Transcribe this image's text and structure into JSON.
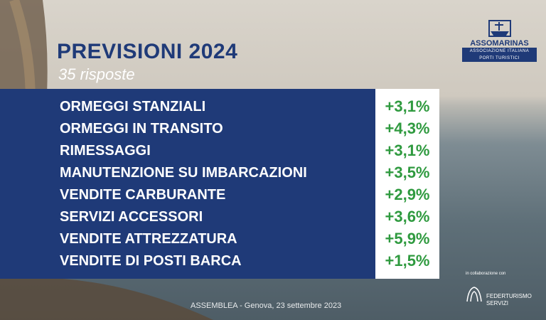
{
  "header": {
    "title": "PREVISIONI 2024",
    "subtitle": "35 risposte"
  },
  "logo": {
    "name": "ASSOMARINAS",
    "line1": "ASSOCIAZIONE ITALIANA",
    "line2": "PORTI TURISTICI"
  },
  "table": {
    "rows": [
      [
        "ORMEGGI STANZIALI",
        "+3,1%"
      ],
      [
        "ORMEGGI IN TRANSITO",
        "+4,3%"
      ],
      [
        "RIMESSAGGI",
        "+3,1%"
      ],
      [
        "MANUTENZIONE SU IMBARCAZIONI",
        "+3,5%"
      ],
      [
        "VENDITE CARBURANTE",
        "+2,9%"
      ],
      [
        "SERVIZI ACCESSORI",
        "+3,6%"
      ],
      [
        "VENDITE ATTREZZATURA",
        "+5,9%"
      ],
      [
        "VENDITE DI POSTI BARCA",
        "+1,5%"
      ]
    ]
  },
  "partner": {
    "intro": "in collaborazione con",
    "name": "FEDERTURISMO",
    "sub": "SERVIZI"
  },
  "footer": "ASSEMBLEA - Genova, 23 settembre 2023"
}
